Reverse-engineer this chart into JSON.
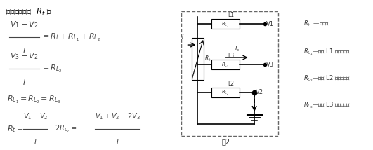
{
  "bg_color": "#ffffff",
  "circuit_bg": "#ccd8e4",
  "title": "热电阴的阵值  $R_t$ ：",
  "leg1": "$R_t$  ——热电阴",
  "leg2": "$R_{L_1}$——导线 L1 的等效电阴",
  "leg3": "$R_{L_2}$——导线 L2 的等效电阴",
  "leg4": "$R_{L_3}$——导线 L3 的等效电阴",
  "fig2": "图2"
}
